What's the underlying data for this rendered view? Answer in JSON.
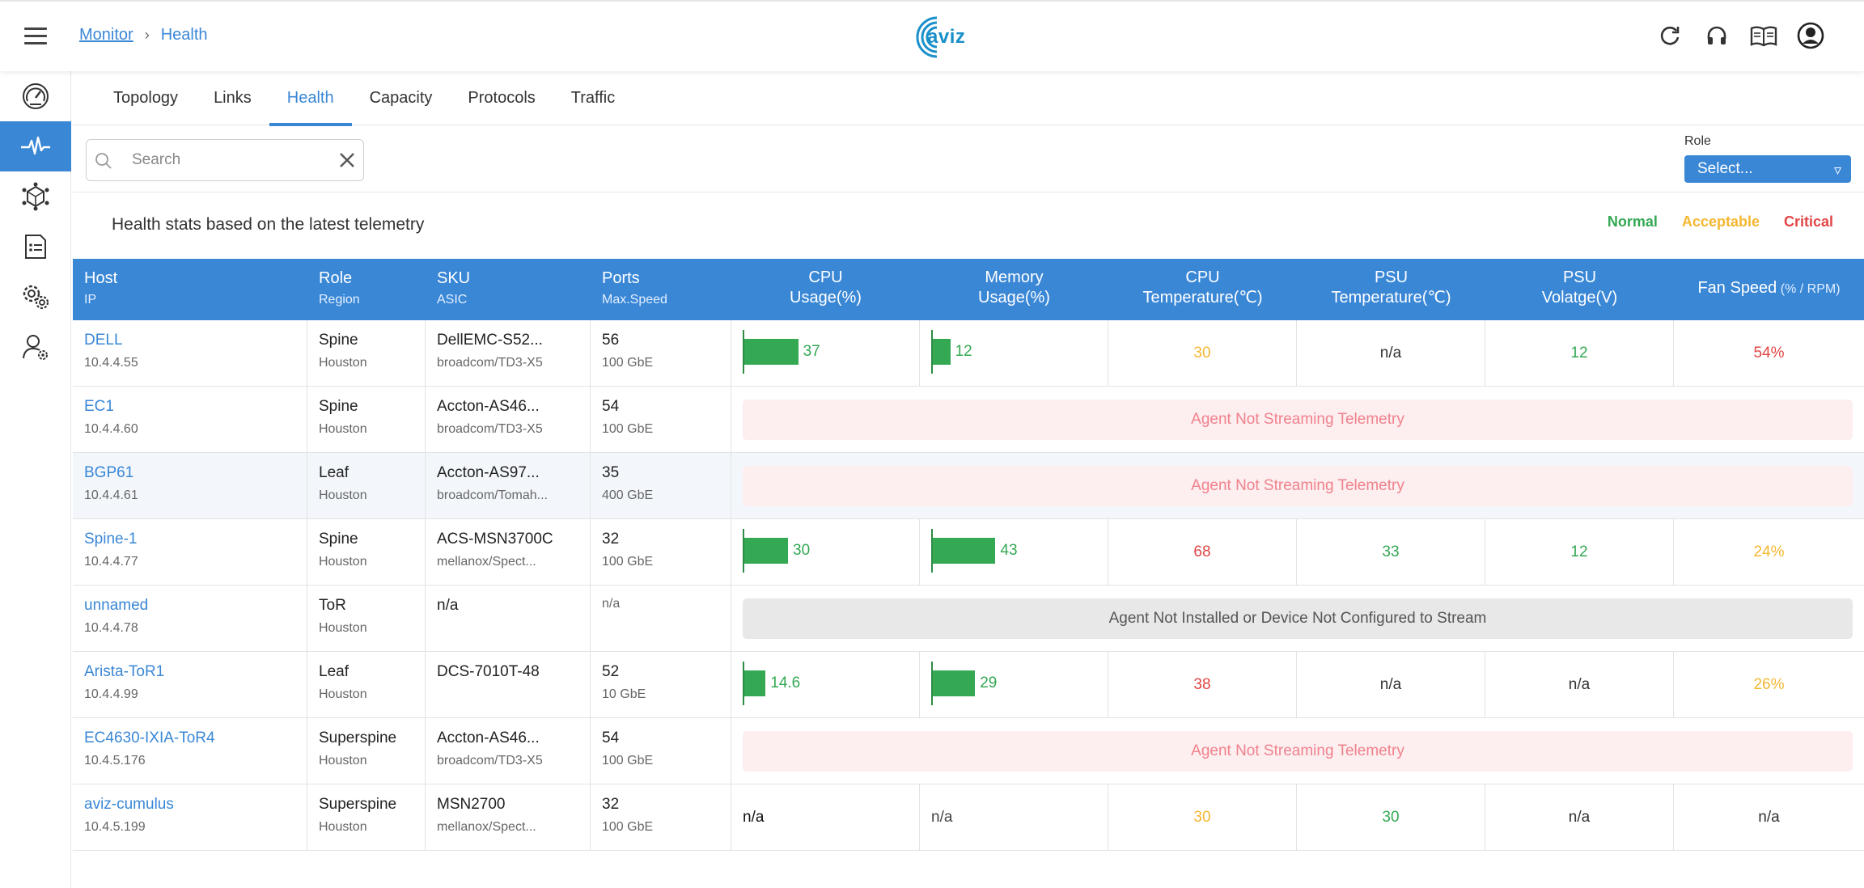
{
  "header": {
    "breadcrumb_parent": "Monitor",
    "breadcrumb_sep": "›",
    "breadcrumb_current": "Health",
    "logo_text": "aviz"
  },
  "tabs": [
    "Topology",
    "Links",
    "Health",
    "Capacity",
    "Protocols",
    "Traffic"
  ],
  "active_tab": "Health",
  "search": {
    "placeholder": "Search"
  },
  "role_filter": {
    "label": "Role",
    "value": "Select...",
    "caret": "▿"
  },
  "title": "Health stats based on the latest telemetry",
  "legend": {
    "normal": "Normal",
    "acceptable": "Acceptable",
    "critical": "Critical"
  },
  "colors": {
    "accent": "#3a87d6",
    "normal": "#34a853",
    "acceptable": "#f5b731",
    "critical": "#e24545"
  },
  "columns": {
    "host": {
      "t1": "Host",
      "t2": "IP"
    },
    "role": {
      "t1": "Role",
      "t2": "Region"
    },
    "sku": {
      "t1": "SKU",
      "t2": "ASIC"
    },
    "ports": {
      "t1": "Ports",
      "t2": "Max.Speed"
    },
    "cpu": {
      "t1": "CPU",
      "t2": "Usage(%)"
    },
    "mem": {
      "t1": "Memory",
      "t2": "Usage(%)"
    },
    "cputemp": {
      "t1": "CPU",
      "t2": "Temperature(℃)"
    },
    "psutemp": {
      "t1": "PSU",
      "t2": "Temperature(℃)"
    },
    "psuvolt": {
      "t1": "PSU",
      "t2": "Volatge(V)"
    },
    "fan": {
      "t1": "Fan Speed",
      "t2": "(% / RPM)"
    }
  },
  "rows": [
    {
      "host": "DELL",
      "ip": "10.4.4.55",
      "role": "Spine",
      "region": "Houston",
      "sku": "DellEMC-S52...",
      "asic": "broadcom/TD3-X5",
      "ports": "56",
      "speed": "100 GbE",
      "cpu": 37,
      "cpu_label": "37",
      "mem": 12,
      "mem_label": "12",
      "cputemp": "30",
      "cputemp_status": "acceptable",
      "psutemp": "n/a",
      "psutemp_status": "na",
      "psuvolt": "12",
      "psuvolt_status": "normal",
      "fan": "54%",
      "fan_status": "critical"
    },
    {
      "host": "EC1",
      "ip": "10.4.4.60",
      "role": "Spine",
      "region": "Houston",
      "sku": "Accton-AS46...",
      "asic": "broadcom/TD3-X5",
      "ports": "54",
      "speed": "100 GbE",
      "banner": "Agent Not Streaming Telemetry",
      "banner_type": "pink"
    },
    {
      "host": "BGP61",
      "ip": "10.4.4.61",
      "role": "Leaf",
      "region": "Houston",
      "sku": "Accton-AS97...",
      "asic": "broadcom/Tomah...",
      "ports": "35",
      "speed": "400 GbE",
      "banner": "Agent Not Streaming Telemetry",
      "banner_type": "pink",
      "alt": true
    },
    {
      "host": "Spine-1",
      "ip": "10.4.4.77",
      "role": "Spine",
      "region": "Houston",
      "sku": "ACS-MSN3700C",
      "asic": "mellanox/Spect...",
      "ports": "32",
      "speed": "100 GbE",
      "cpu": 30,
      "cpu_label": "30",
      "mem": 43,
      "mem_label": "43",
      "cputemp": "68",
      "cputemp_status": "critical",
      "psutemp": "33",
      "psutemp_status": "normal",
      "psuvolt": "12",
      "psuvolt_status": "normal",
      "fan": "24%",
      "fan_status": "acceptable"
    },
    {
      "host": "unnamed",
      "ip": "10.4.4.78",
      "role": "ToR",
      "region": "Houston",
      "sku": "n/a",
      "asic": "",
      "ports": "n/a",
      "speed": "",
      "banner": "Agent Not Installed or Device Not Configured to Stream",
      "banner_type": "grey"
    },
    {
      "host": "Arista-ToR1",
      "ip": "10.4.4.99",
      "role": "Leaf",
      "region": "Houston",
      "sku": "DCS-7010T-48",
      "asic": "",
      "ports": "52",
      "speed": "10 GbE",
      "cpu": 14.6,
      "cpu_label": "14.6",
      "mem": 29,
      "mem_label": "29",
      "cputemp": "38",
      "cputemp_status": "critical",
      "psutemp": "n/a",
      "psutemp_status": "na",
      "psuvolt": "n/a",
      "psuvolt_status": "na",
      "fan": "26%",
      "fan_status": "acceptable"
    },
    {
      "host": "EC4630-IXIA-ToR4",
      "ip": "10.4.5.176",
      "role": "Superspine",
      "region": "Houston",
      "sku": "Accton-AS46...",
      "asic": "broadcom/TD3-X5",
      "ports": "54",
      "speed": "100 GbE",
      "banner": "Agent Not Streaming Telemetry",
      "banner_type": "pink"
    },
    {
      "host": "aviz-cumulus",
      "ip": "10.4.5.199",
      "role": "Superspine",
      "region": "Houston",
      "sku": "MSN2700",
      "asic": "mellanox/Spect...",
      "ports": "32",
      "speed": "100 GbE",
      "cpu_text": "n/a",
      "mem_text": "n/a",
      "cputemp": "30",
      "cputemp_status": "acceptable",
      "psutemp": "30",
      "psutemp_status": "normal",
      "psuvolt": "n/a",
      "psuvolt_status": "na",
      "fan": "n/a",
      "fan_status": "na"
    }
  ]
}
